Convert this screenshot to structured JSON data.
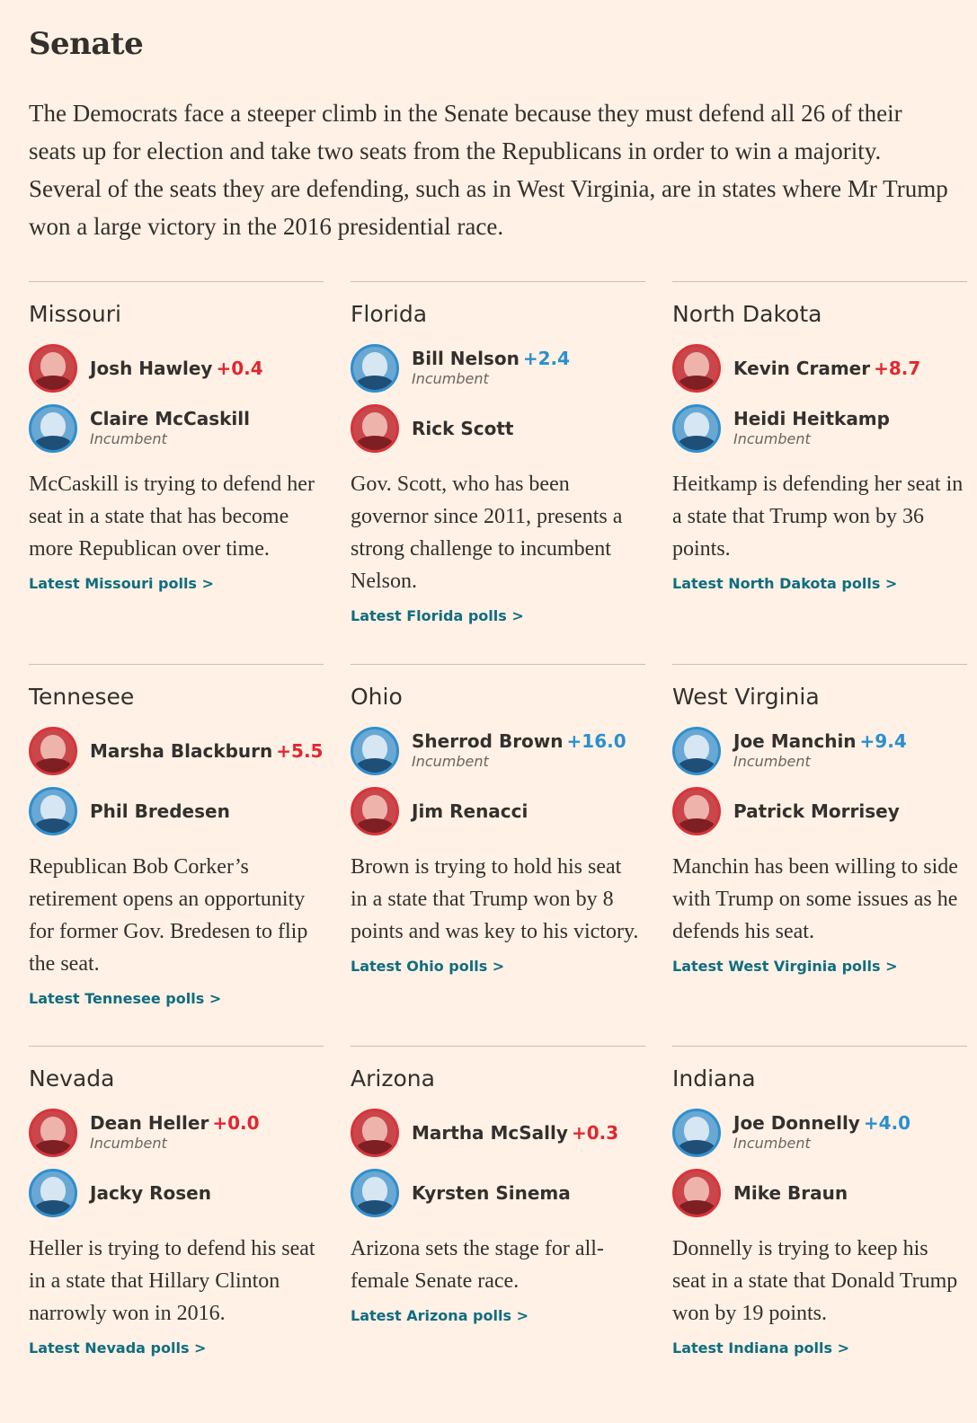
{
  "section": {
    "title": "Senate",
    "intro": "The Democrats face a steeper climb in the Senate because they must defend all 26 of their seats up for election and take two seats from the Republicans in order to win a majority. Several of the seats they are defending, such as in West Virginia, are in states where Mr Trump won a large victory in the 2016 presidential race."
  },
  "colors": {
    "background": "#fff1e5",
    "republican": "#d9333a",
    "democrat": "#2f8fce",
    "link": "#0f6d80"
  },
  "races": [
    {
      "state": "Missouri",
      "candidates": [
        {
          "name": "Josh Hawley",
          "lead": "+0.4",
          "party": "rep",
          "incumbent": ""
        },
        {
          "name": "Claire McCaskill",
          "lead": "",
          "party": "dem",
          "incumbent": "Incumbent"
        }
      ],
      "description": "McCaskill is trying to defend her seat in a state that has become more Republican over time.",
      "link": "Latest Missouri polls >"
    },
    {
      "state": "Florida",
      "candidates": [
        {
          "name": "Bill Nelson",
          "lead": "+2.4",
          "party": "dem",
          "incumbent": "Incumbent"
        },
        {
          "name": "Rick Scott",
          "lead": "",
          "party": "rep",
          "incumbent": ""
        }
      ],
      "description": "Gov. Scott, who has been governor since 2011, presents a strong challenge to incumbent Nelson.",
      "link": "Latest Florida polls >"
    },
    {
      "state": "North Dakota",
      "candidates": [
        {
          "name": "Kevin Cramer",
          "lead": "+8.7",
          "party": "rep",
          "incumbent": ""
        },
        {
          "name": "Heidi Heitkamp",
          "lead": "",
          "party": "dem",
          "incumbent": "Incumbent"
        }
      ],
      "description": "Heitkamp is defending her seat in a state that Trump won by 36 points.",
      "link": "Latest North Dakota polls >"
    },
    {
      "state": "Tennesee",
      "candidates": [
        {
          "name": "Marsha Blackburn",
          "lead": "+5.5",
          "party": "rep",
          "incumbent": ""
        },
        {
          "name": "Phil Bredesen",
          "lead": "",
          "party": "dem",
          "incumbent": ""
        }
      ],
      "description": "Republican Bob Corker’s retirement opens an opportunity for former Gov. Bredesen to flip the seat.",
      "link": "Latest Tennesee polls >"
    },
    {
      "state": "Ohio",
      "candidates": [
        {
          "name": "Sherrod Brown",
          "lead": "+16.0",
          "party": "dem",
          "incumbent": "Incumbent"
        },
        {
          "name": "Jim Renacci",
          "lead": "",
          "party": "rep",
          "incumbent": ""
        }
      ],
      "description": "Brown is trying to hold his seat in a state that Trump won by 8 points and was key to his victory.",
      "link": "Latest Ohio polls >"
    },
    {
      "state": "West Virginia",
      "candidates": [
        {
          "name": "Joe Manchin",
          "lead": "+9.4",
          "party": "dem",
          "incumbent": "Incumbent"
        },
        {
          "name": "Patrick Morrisey",
          "lead": "",
          "party": "rep",
          "incumbent": ""
        }
      ],
      "description": "Manchin has been willing to side with Trump on some issues as he defends his seat.",
      "link": "Latest West Virginia polls >"
    },
    {
      "state": "Nevada",
      "candidates": [
        {
          "name": "Dean Heller",
          "lead": "+0.0",
          "party": "rep",
          "incumbent": "Incumbent"
        },
        {
          "name": "Jacky Rosen",
          "lead": "",
          "party": "dem",
          "incumbent": ""
        }
      ],
      "description": "Heller is trying to defend his seat in a state that Hillary Clinton narrowly won in 2016.",
      "link": "Latest Nevada polls >"
    },
    {
      "state": "Arizona",
      "candidates": [
        {
          "name": "Martha McSally",
          "lead": "+0.3",
          "party": "rep",
          "incumbent": ""
        },
        {
          "name": "Kyrsten Sinema",
          "lead": "",
          "party": "dem",
          "incumbent": ""
        }
      ],
      "description": "Arizona sets the stage for all-female Senate race.",
      "link": "Latest Arizona polls >"
    },
    {
      "state": "Indiana",
      "candidates": [
        {
          "name": "Joe Donnelly",
          "lead": "+4.0",
          "party": "dem",
          "incumbent": "Incumbent"
        },
        {
          "name": "Mike Braun",
          "lead": "",
          "party": "rep",
          "incumbent": ""
        }
      ],
      "description": "Donnelly is trying to keep his seat in a state that Donald Trump won by 19 points.",
      "link": "Latest Indiana polls >"
    }
  ]
}
